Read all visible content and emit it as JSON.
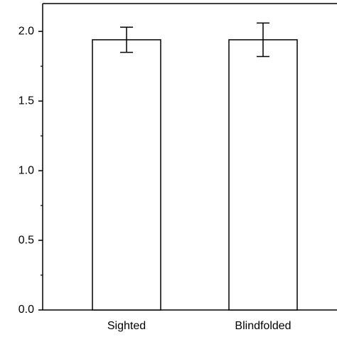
{
  "chart_data": {
    "type": "bar",
    "categories": [
      "Sighted",
      "Blindfolded"
    ],
    "values": [
      1.94,
      1.94
    ],
    "errors": [
      0.09,
      0.12
    ],
    "color": "#ffffff",
    "ylim": [
      0,
      2.2
    ],
    "yticks": [
      {
        "value": 0,
        "label": "0.0"
      },
      0.5,
      {
        "value": 1,
        "label": "1.0"
      },
      1.5,
      {
        "value": 2,
        "label": "2.0"
      }
    ],
    "minor_yticks": [
      0.25,
      0.75,
      1.25,
      1.75
    ],
    "grid": false
  }
}
